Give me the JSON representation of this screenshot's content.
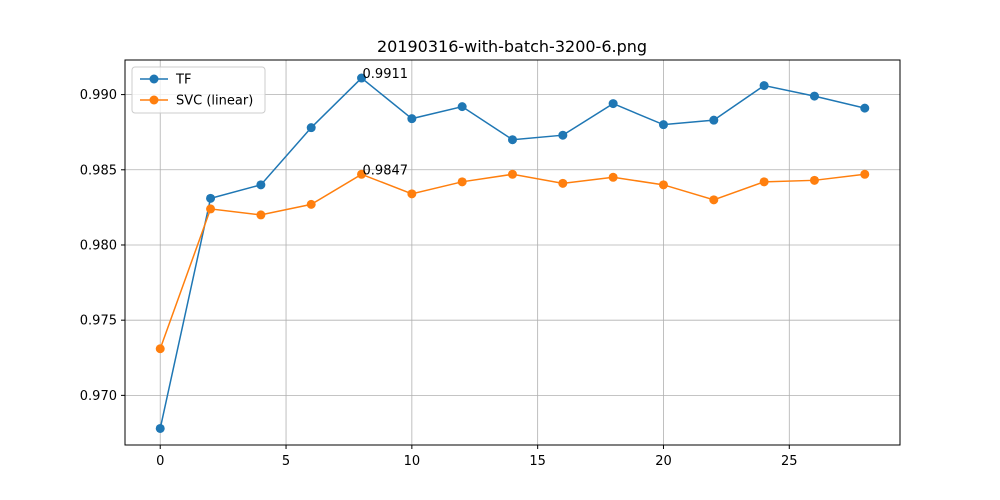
{
  "chart_data": {
    "type": "line",
    "title": "20190316-with-batch-3200-6.png",
    "xlabel": "",
    "ylabel": "",
    "x": [
      0,
      2,
      4,
      6,
      8,
      10,
      12,
      14,
      16,
      18,
      20,
      22,
      24,
      26,
      28
    ],
    "xlim": [
      -1.4,
      29.4
    ],
    "ylim": [
      0.9667,
      0.9923
    ],
    "x_ticks": [
      0,
      5,
      10,
      15,
      20,
      25
    ],
    "x_tick_labels": [
      "0",
      "5",
      "10",
      "15",
      "20",
      "25"
    ],
    "y_ticks": [
      0.97,
      0.975,
      0.98,
      0.985,
      0.99
    ],
    "y_tick_labels": [
      "0.970",
      "0.975",
      "0.980",
      "0.985",
      "0.990"
    ],
    "grid": true,
    "legend_position": "top-left",
    "series": [
      {
        "name": "TF",
        "color": "#1f77b4",
        "values": [
          0.9678,
          0.9831,
          0.984,
          0.9878,
          0.9911,
          0.9884,
          0.9892,
          0.987,
          0.9873,
          0.9894,
          0.988,
          0.9883,
          0.9906,
          0.9899,
          0.9891
        ]
      },
      {
        "name": "SVC (linear)",
        "color": "#ff7f0e",
        "values": [
          0.9731,
          0.9824,
          0.982,
          0.9827,
          0.9847,
          0.9834,
          0.9842,
          0.9847,
          0.9841,
          0.9845,
          0.984,
          0.983,
          0.9842,
          0.9843,
          0.9847
        ]
      }
    ],
    "annotations": [
      {
        "text": "0.9911",
        "x": 8,
        "y": 0.9911
      },
      {
        "text": "0.9847",
        "x": 8,
        "y": 0.9847
      }
    ]
  }
}
